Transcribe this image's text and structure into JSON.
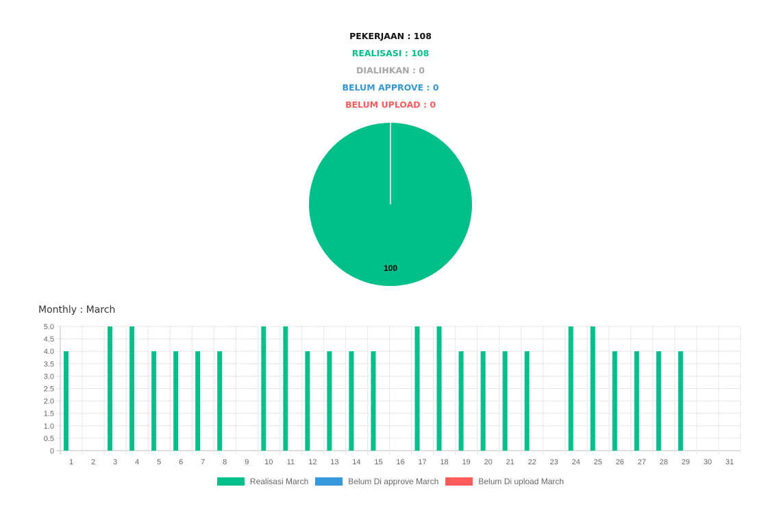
{
  "summary": {
    "pekerjaan": {
      "text": "PEKERJAAN : 108",
      "color": "#111111"
    },
    "realisasi": {
      "text": "REALISASI : 108",
      "color": "#00bf8a"
    },
    "dialihkan": {
      "text": "DIALIHKAN : 0",
      "color": "#a6a6a6"
    },
    "belum_approve": {
      "text": "BELUM APPROVE : 0",
      "color": "#3498db"
    },
    "belum_upload": {
      "text": "BELUM UPLOAD : 0",
      "color": "#ff5b5b"
    }
  },
  "monthly": {
    "title": "Monthly : March"
  },
  "chart_data": [
    {
      "type": "pie",
      "slices": [
        {
          "value": 100,
          "label": "100",
          "color": "#00bf8a"
        }
      ]
    },
    {
      "type": "bar",
      "categories": [
        "1",
        "2",
        "3",
        "4",
        "5",
        "6",
        "7",
        "8",
        "9",
        "10",
        "11",
        "12",
        "13",
        "14",
        "15",
        "16",
        "17",
        "18",
        "19",
        "20",
        "21",
        "22",
        "23",
        "24",
        "25",
        "26",
        "27",
        "28",
        "29",
        "30",
        "31"
      ],
      "series": [
        {
          "name": "Realisasi March",
          "color": "#00bf8a",
          "values": [
            4,
            0,
            5,
            5,
            4,
            4,
            4,
            4,
            0,
            5,
            5,
            4,
            4,
            4,
            4,
            0,
            5,
            5,
            4,
            4,
            4,
            4,
            0,
            5,
            5,
            4,
            4,
            4,
            4,
            0,
            0
          ]
        },
        {
          "name": "Belum Di approve March",
          "color": "#3498db",
          "values": [
            0,
            0,
            0,
            0,
            0,
            0,
            0,
            0,
            0,
            0,
            0,
            0,
            0,
            0,
            0,
            0,
            0,
            0,
            0,
            0,
            0,
            0,
            0,
            0,
            0,
            0,
            0,
            0,
            0,
            0,
            0
          ]
        },
        {
          "name": "Belum Di upload March",
          "color": "#ff5b5b",
          "values": [
            0,
            0,
            0,
            0,
            0,
            0,
            0,
            0,
            0,
            0,
            0,
            0,
            0,
            0,
            0,
            0,
            0,
            0,
            0,
            0,
            0,
            0,
            0,
            0,
            0,
            0,
            0,
            0,
            0,
            0,
            0
          ]
        }
      ],
      "ylim": [
        0,
        5
      ],
      "yticks": [
        "0",
        "0.5",
        "1.0",
        "1.5",
        "2.0",
        "2.5",
        "3.0",
        "3.5",
        "4.0",
        "4.5",
        "5.0"
      ],
      "grid": true,
      "legend_position": "bottom"
    }
  ]
}
